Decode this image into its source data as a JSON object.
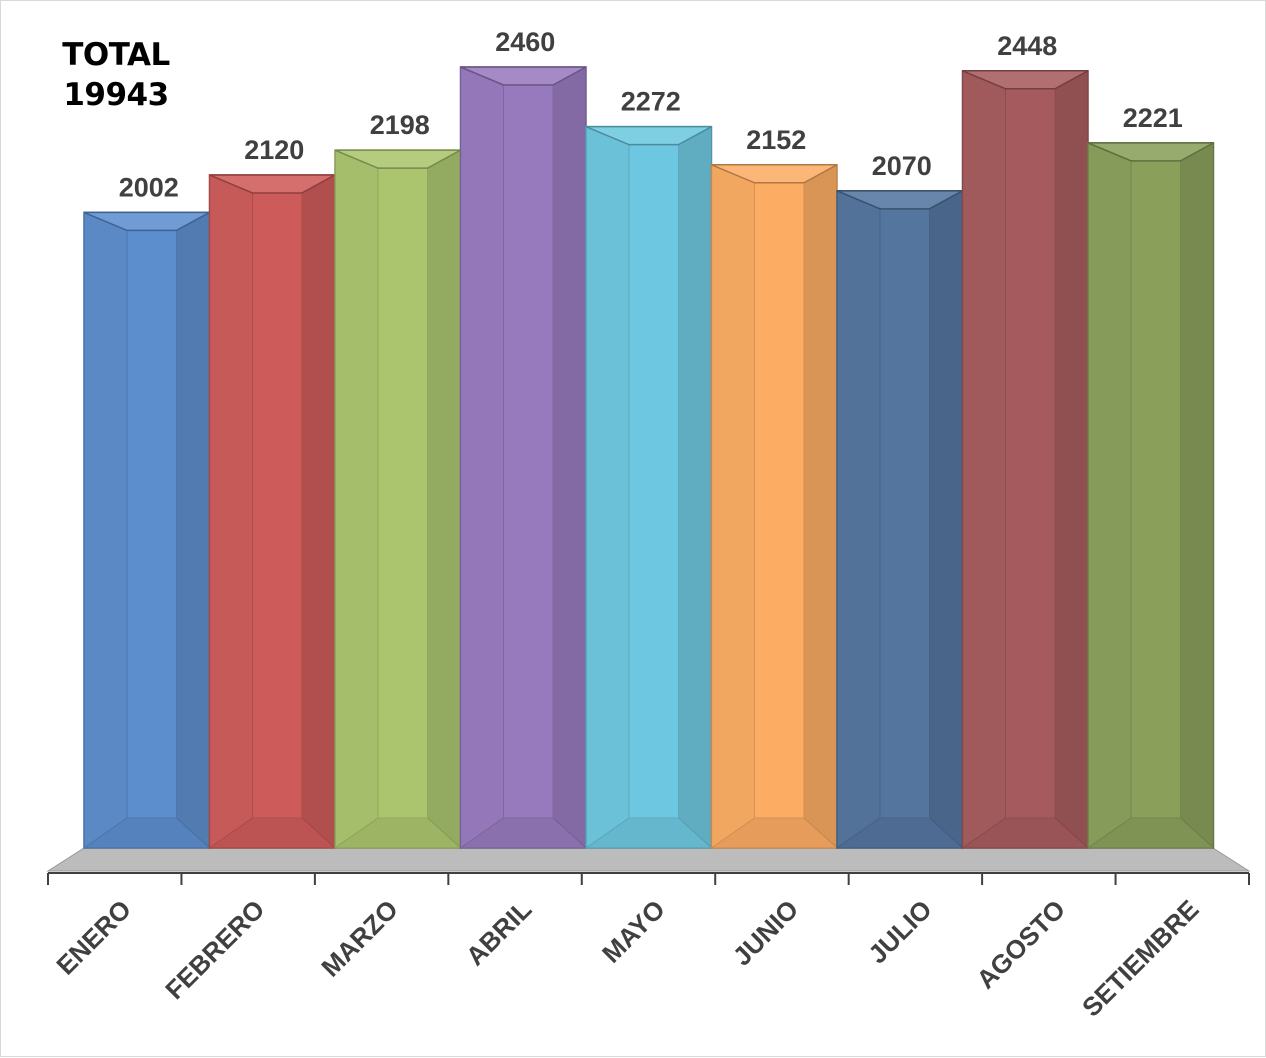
{
  "total": {
    "label": "TOTAL",
    "value": "19943"
  },
  "chart_data": {
    "type": "bar",
    "categories": [
      "ENERO",
      "FEBRERO",
      "MARZO",
      "ABRIL",
      "MAYO",
      "JUNIO",
      "JULIO",
      "AGOSTO",
      "SETIEMBRE"
    ],
    "values": [
      2002,
      2120,
      2198,
      2460,
      2272,
      2152,
      2070,
      2448,
      2221
    ],
    "colors": [
      "#5b8ccc",
      "#cc5a58",
      "#a9c46c",
      "#9679bd",
      "#6cc7df",
      "#fbab62",
      "#52749e",
      "#a55a5c",
      "#889f59"
    ],
    "title": "",
    "xlabel": "",
    "ylabel": "",
    "ylim": [
      0,
      2460
    ],
    "grid": false,
    "legend": "none",
    "style": "3d"
  }
}
